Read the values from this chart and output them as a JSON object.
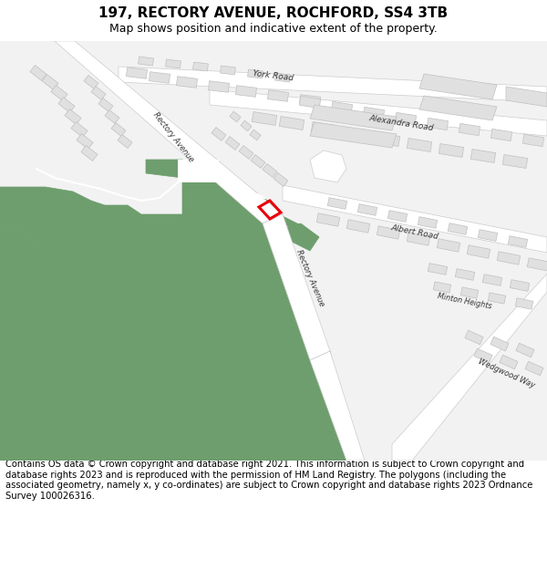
{
  "title": "197, RECTORY AVENUE, ROCHFORD, SS4 3TB",
  "subtitle": "Map shows position and indicative extent of the property.",
  "footer": "Contains OS data © Crown copyright and database right 2021. This information is subject to Crown copyright and database rights 2023 and is reproduced with the permission of HM Land Registry. The polygons (including the associated geometry, namely x, y co-ordinates) are subject to Crown copyright and database rights 2023 Ordnance Survey 100026316.",
  "map_bg": "#f2f2f2",
  "road_color": "#ffffff",
  "road_outline": "#cccccc",
  "building_fill": "#e0e0e0",
  "building_edge": "#c0c0c0",
  "green_fill": "#6e9e6e",
  "green_edge": "#6e9e6e",
  "white_path": "#ffffff",
  "plot_edge": "#e8000a",
  "plot_lw": 2.2,
  "title_fontsize": 11,
  "subtitle_fontsize": 9,
  "footer_fontsize": 7.2
}
